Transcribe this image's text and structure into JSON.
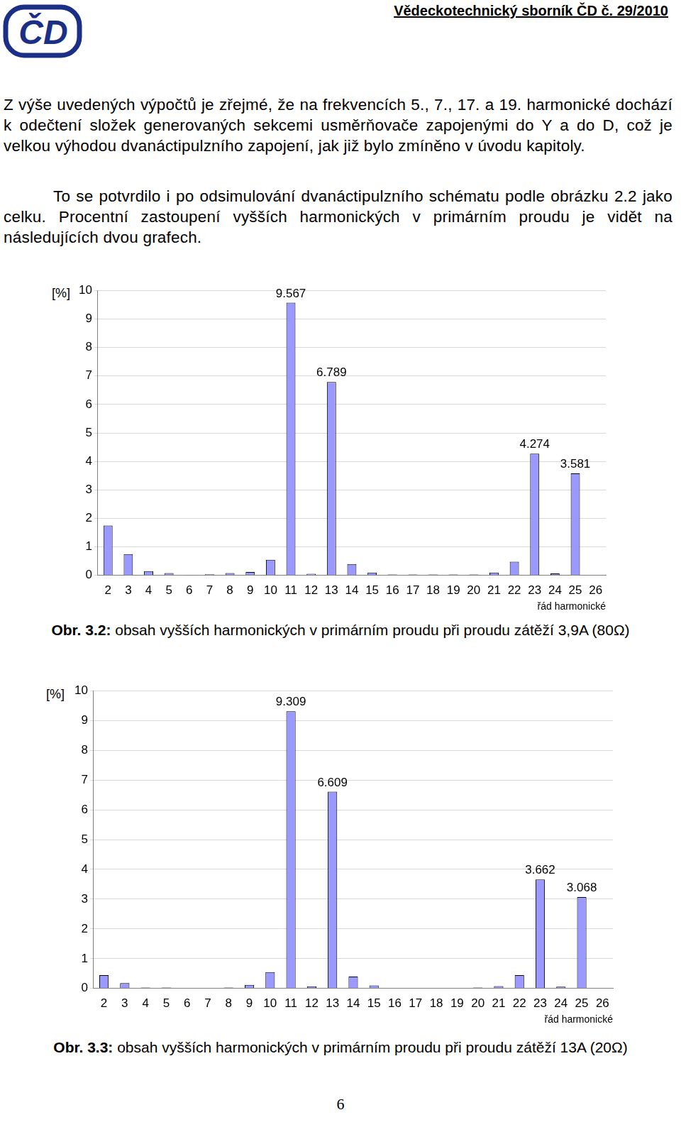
{
  "header": {
    "logo_text": "ČD",
    "title": "Vědeckotechnický sborník ČD č. 29/2010"
  },
  "paragraphs": [
    "Z výše uvedených výpočtů je zřejmé, že na frekvencích 5., 7., 17. a 19. harmonické dochází k odečtení složek generovaných sekcemi usměrňovače zapojenými do Y a do D, což je velkou výhodou dvanáctipulzního zapojení, jak již bylo zmíněno v úvodu kapitoly.",
    "To se potvrdilo i po odsimulování dvanáctipulzního schématu podle obrázku 2.2 jako celku. Procentní zastoupení vyšších harmonických v primárním proudu je vidět na následujících dvou grafech."
  ],
  "chart_data": [
    {
      "type": "bar",
      "y_label": "[%]",
      "x_label": "řád harmonické",
      "caption": {
        "label": "Obr. 3.2:",
        "text": "obsah vyšších harmonických v primárním proudu při proudu zátěží 3,9A (80Ω)"
      },
      "categories": [
        2,
        3,
        4,
        5,
        6,
        7,
        8,
        9,
        10,
        11,
        12,
        13,
        14,
        15,
        16,
        17,
        18,
        19,
        20,
        21,
        22,
        23,
        24,
        25,
        26
      ],
      "values": [
        1.75,
        0.75,
        0.15,
        0.08,
        0.02,
        0.04,
        0.08,
        0.12,
        0.55,
        9.567,
        0.06,
        6.789,
        0.4,
        0.1,
        0.03,
        0.03,
        0.03,
        0.03,
        0.03,
        0.1,
        0.48,
        4.274,
        0.07,
        3.581,
        null
      ],
      "value_labels": [
        null,
        null,
        null,
        null,
        null,
        null,
        null,
        null,
        null,
        "9.567",
        null,
        "6.789",
        null,
        null,
        null,
        null,
        null,
        null,
        null,
        null,
        null,
        "4.274",
        null,
        "3.581",
        null
      ],
      "color": "#9999ff",
      "ylim": [
        0,
        10
      ],
      "yticks": [
        0,
        1,
        2,
        3,
        4,
        5,
        6,
        7,
        8,
        9,
        10
      ],
      "grid": true
    },
    {
      "type": "bar",
      "y_label": "[%]",
      "x_label": "řád harmonické",
      "caption": {
        "label": "Obr. 3.3:",
        "text": "obsah vyšších harmonických v primárním proudu při proudu zátěží 13A (20Ω)"
      },
      "categories": [
        2,
        3,
        4,
        5,
        6,
        7,
        8,
        9,
        10,
        11,
        12,
        13,
        14,
        15,
        16,
        17,
        18,
        19,
        20,
        21,
        22,
        23,
        24,
        25,
        26
      ],
      "values": [
        0.45,
        0.18,
        0.03,
        0.03,
        null,
        null,
        0.03,
        0.12,
        0.55,
        9.309,
        0.07,
        6.609,
        0.4,
        0.1,
        null,
        null,
        null,
        null,
        0.03,
        0.08,
        0.45,
        3.662,
        0.06,
        3.068,
        null
      ],
      "value_labels": [
        null,
        null,
        null,
        null,
        null,
        null,
        null,
        null,
        null,
        "9.309",
        null,
        "6.609",
        null,
        null,
        null,
        null,
        null,
        null,
        null,
        null,
        null,
        "3.662",
        null,
        "3.068",
        null
      ],
      "color": "#9999ff",
      "ylim": [
        0,
        10
      ],
      "yticks": [
        0,
        1,
        2,
        3,
        4,
        5,
        6,
        7,
        8,
        9,
        10
      ],
      "grid": true
    }
  ],
  "page_number": "6"
}
